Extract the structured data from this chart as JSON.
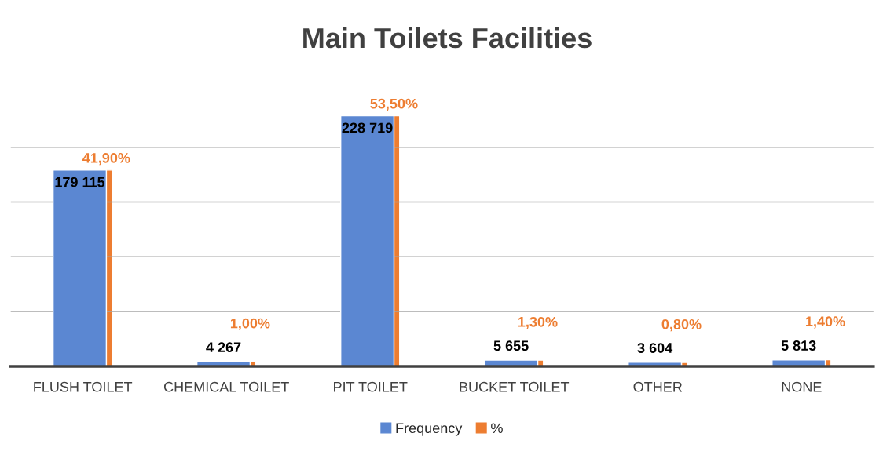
{
  "chart_data": {
    "type": "bar",
    "title": "Main Toilets Facilities",
    "categories": [
      "FLUSH TOILET",
      "CHEMICAL TOILET",
      "PIT TOILET",
      "BUCKET TOILET",
      "OTHER",
      "NONE"
    ],
    "series": [
      {
        "name": "Frequency",
        "color": "#5b87d2",
        "values": [
          179115,
          4267,
          228719,
          5655,
          3604,
          5813
        ],
        "value_labels": [
          "179 115",
          "4 267",
          "228 719",
          "5 655",
          "3 604",
          "5 813"
        ]
      },
      {
        "name": "%",
        "color": "#ed7d31",
        "axis": "y2",
        "values": [
          41.9,
          1.0,
          53.5,
          1.3,
          0.8,
          1.4
        ],
        "value_labels": [
          "41,90%",
          "1,00%",
          "53,50%",
          "1,30%",
          "0,80%",
          "1,40%"
        ]
      }
    ],
    "yticks": [
      {
        "value": 0,
        "label": null
      },
      {
        "value": 50000,
        "label": null
      },
      {
        "value": 100000,
        "label": null
      },
      {
        "value": 150000,
        "label": null
      },
      {
        "value": 200000,
        "label": null
      }
    ],
    "tick_labels": "x",
    "grid": "y",
    "legend": "bottom"
  }
}
